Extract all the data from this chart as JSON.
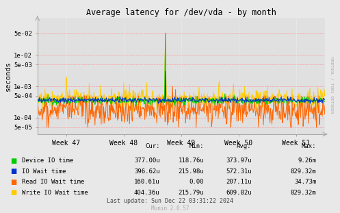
{
  "title": "Average latency for /dev/vda - by month",
  "ylabel": "seconds",
  "xlabel_ticks": [
    "Week 47",
    "Week 48",
    "Week 49",
    "Week 50",
    "Week 51"
  ],
  "ylim": [
    3e-05,
    0.15
  ],
  "yticks": [
    5e-05,
    0.0001,
    0.0005,
    0.001,
    0.005,
    0.01,
    0.05
  ],
  "ytick_labels": [
    "5e-05",
    "1e-04",
    "5e-04",
    "1e-03",
    "5e-03",
    "1e-02",
    "5e-02"
  ],
  "bg_color": "#e8e8e8",
  "plot_bg_color": "#e0e0e0",
  "grid_color": "#ffffff",
  "grid_color_dashed": "#ffaaaa",
  "line_colors": {
    "device_io": "#00cc00",
    "io_wait": "#0033cc",
    "read_io": "#ff6600",
    "write_io": "#ffcc00"
  },
  "legend_labels": [
    "Device IO time",
    "IO Wait time",
    "Read IO Wait time",
    "Write IO Wait time"
  ],
  "cur_vals": [
    "377.00u",
    "396.62u",
    "160.61u",
    "404.36u"
  ],
  "min_vals": [
    "118.76u",
    "215.98u",
    "0.00",
    "215.79u"
  ],
  "avg_vals": [
    "373.97u",
    "572.31u",
    "207.11u",
    "609.82u"
  ],
  "max_vals": [
    "9.26m",
    "829.32m",
    "34.73m",
    "829.32m"
  ],
  "footer": "Last update: Sun Dec 22 03:31:22 2024",
  "munin_version": "Munin 2.0.57",
  "rrdtool_label": "RRDTOOL / TOBI OETIKER",
  "n_points": 600
}
